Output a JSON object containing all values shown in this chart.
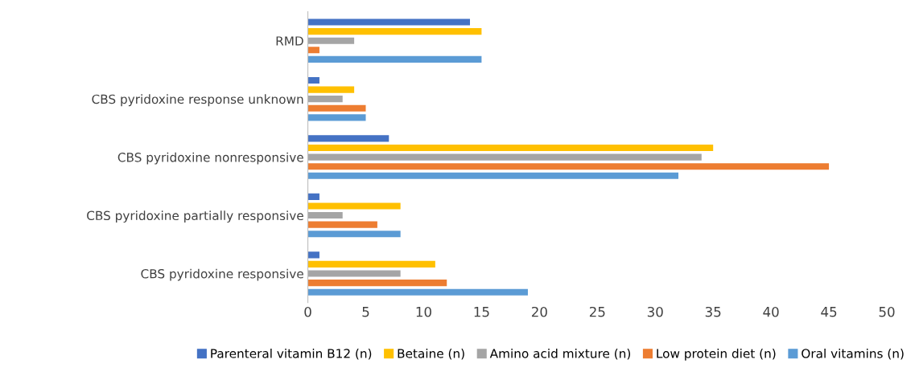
{
  "chart_data": {
    "type": "bar",
    "orientation": "horizontal",
    "categories": [
      "RMD",
      "CBS pyridoxine response unknown",
      "CBS pyridoxine nonresponsive",
      "CBS pyridoxine partially responsive",
      "CBS pyridoxine responsive"
    ],
    "series": [
      {
        "name": "Parenteral vitamin B12 (n)",
        "color": "#4472c4",
        "values": [
          14,
          1,
          7,
          1,
          1
        ]
      },
      {
        "name": "Betaine (n)",
        "color": "#ffc000",
        "values": [
          15,
          4,
          35,
          8,
          11
        ]
      },
      {
        "name": "Amino acid mixture (n)",
        "color": "#a5a5a5",
        "values": [
          4,
          3,
          34,
          3,
          8
        ]
      },
      {
        "name": "Low protein diet (n)",
        "color": "#ed7d31",
        "values": [
          1,
          5,
          45,
          6,
          12
        ]
      },
      {
        "name": "Oral vitamins (n)",
        "color": "#5b9bd5",
        "values": [
          15,
          5,
          32,
          8,
          19
        ]
      }
    ],
    "xlim": [
      0,
      50
    ],
    "xticks": [
      0,
      5,
      10,
      15,
      20,
      25,
      30,
      35,
      40,
      45,
      50
    ],
    "grid": false,
    "legend": "bottom"
  }
}
